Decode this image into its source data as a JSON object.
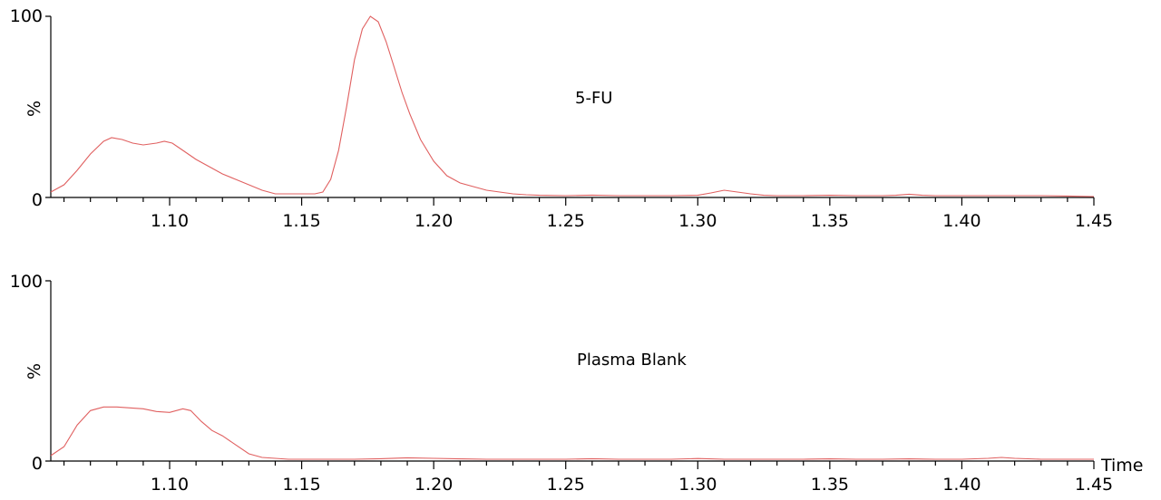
{
  "trace_color": "#e06060",
  "chart_data": [
    {
      "type": "line",
      "annotation": "5-FU",
      "ylabel": "%",
      "xlabel": "",
      "xlim": [
        1.055,
        1.45
      ],
      "ylim": [
        0,
        100
      ],
      "yticks": [
        "0",
        "%",
        "100"
      ],
      "xticks": [
        "1.10",
        "1.15",
        "1.20",
        "1.25",
        "1.30",
        "1.35",
        "1.40",
        "1.45"
      ],
      "x": [
        1.055,
        1.06,
        1.065,
        1.07,
        1.075,
        1.078,
        1.082,
        1.086,
        1.09,
        1.095,
        1.098,
        1.101,
        1.105,
        1.11,
        1.115,
        1.12,
        1.125,
        1.13,
        1.135,
        1.14,
        1.145,
        1.15,
        1.155,
        1.158,
        1.161,
        1.164,
        1.167,
        1.17,
        1.173,
        1.176,
        1.179,
        1.182,
        1.185,
        1.188,
        1.191,
        1.195,
        1.2,
        1.205,
        1.21,
        1.215,
        1.22,
        1.225,
        1.23,
        1.235,
        1.24,
        1.25,
        1.26,
        1.27,
        1.28,
        1.29,
        1.3,
        1.305,
        1.31,
        1.315,
        1.32,
        1.325,
        1.33,
        1.34,
        1.35,
        1.36,
        1.37,
        1.375,
        1.38,
        1.385,
        1.39,
        1.4,
        1.41,
        1.42,
        1.43,
        1.44,
        1.45
      ],
      "y": [
        3,
        7,
        15,
        24,
        31,
        33,
        32,
        30,
        29,
        30,
        31,
        30,
        26,
        21,
        17,
        13,
        10,
        7,
        4,
        2,
        2,
        2,
        2,
        3,
        10,
        26,
        50,
        76,
        93,
        100,
        97,
        86,
        72,
        58,
        46,
        32,
        20,
        12,
        8,
        6,
        4,
        3,
        2,
        1.5,
        1.2,
        1,
        1.3,
        1,
        1,
        1,
        1.2,
        2.5,
        4,
        3,
        2,
        1.2,
        1,
        1,
        1.2,
        1,
        1,
        1.2,
        1.8,
        1.2,
        1,
        1,
        1,
        1,
        1,
        0.8,
        0.5
      ]
    },
    {
      "type": "line",
      "annotation": "Plasma Blank",
      "ylabel": "%",
      "xlabel": "Time",
      "xlim": [
        1.055,
        1.45
      ],
      "ylim": [
        0,
        100
      ],
      "yticks": [
        "0",
        "%",
        "100"
      ],
      "xticks": [
        "1.10",
        "1.15",
        "1.20",
        "1.25",
        "1.30",
        "1.35",
        "1.40",
        "1.45"
      ],
      "x": [
        1.055,
        1.06,
        1.065,
        1.07,
        1.075,
        1.08,
        1.085,
        1.09,
        1.095,
        1.1,
        1.105,
        1.108,
        1.112,
        1.116,
        1.12,
        1.125,
        1.13,
        1.135,
        1.14,
        1.145,
        1.15,
        1.155,
        1.16,
        1.17,
        1.18,
        1.19,
        1.2,
        1.21,
        1.22,
        1.23,
        1.24,
        1.25,
        1.26,
        1.27,
        1.28,
        1.29,
        1.3,
        1.31,
        1.32,
        1.33,
        1.34,
        1.35,
        1.36,
        1.37,
        1.38,
        1.39,
        1.4,
        1.41,
        1.415,
        1.42,
        1.43,
        1.44,
        1.45
      ],
      "y": [
        3,
        8,
        20,
        28,
        30,
        30,
        29.5,
        29,
        27.5,
        27,
        29,
        28,
        22,
        17,
        14,
        9,
        4,
        2,
        1.5,
        1,
        1,
        1,
        1,
        1,
        1.3,
        1.8,
        1.5,
        1.2,
        1,
        1,
        1,
        1,
        1.3,
        1,
        1,
        1,
        1.4,
        1,
        1,
        1,
        1,
        1.2,
        1,
        1,
        1.2,
        1,
        1,
        1.5,
        2,
        1.5,
        1,
        1,
        1
      ]
    }
  ]
}
